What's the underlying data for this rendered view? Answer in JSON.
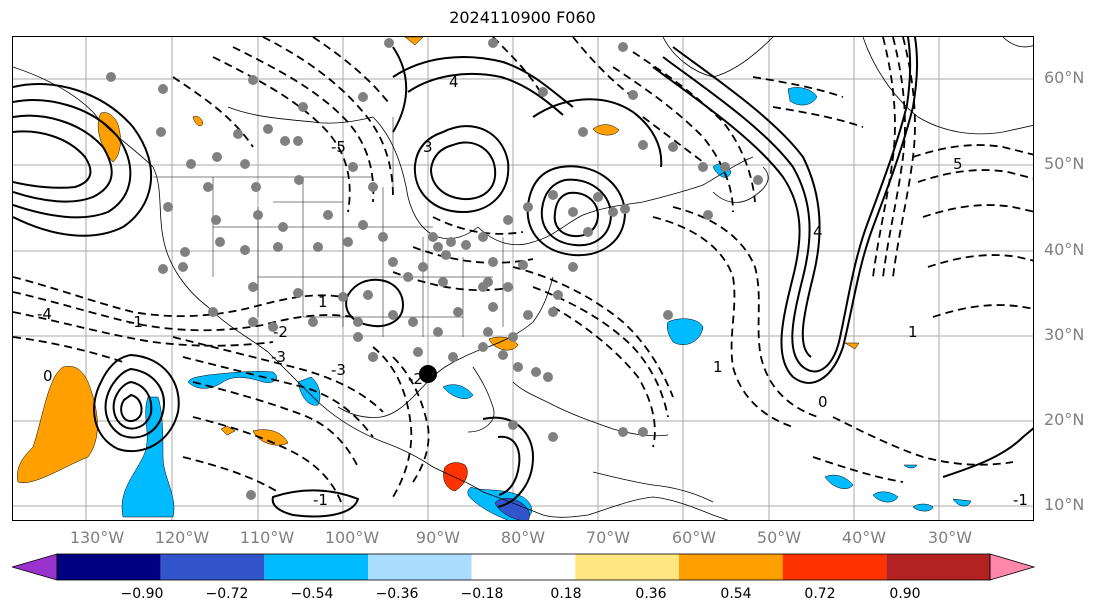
{
  "title": "2024110900 F060",
  "lat_labels": [
    "60°N",
    "50°N",
    "40°N",
    "30°N",
    "20°N",
    "10°N"
  ],
  "lon_labels": [
    "130°W",
    "120°W",
    "110°W",
    "100°W",
    "90°W",
    "80°W",
    "70°W",
    "60°W",
    "50°W",
    "40°W",
    "30°W"
  ],
  "contour_labels": [
    "-4",
    "-3",
    "-2",
    "-1",
    "0",
    "1",
    "-1",
    "-2",
    "-3",
    "4",
    "3",
    "-5",
    "1",
    "0",
    "-1",
    "1",
    "4",
    "5"
  ],
  "colorbar": {
    "ticks": [
      "−0.90",
      "−0.72",
      "−0.54",
      "−0.36",
      "−0.18",
      "0.18",
      "0.36",
      "0.54",
      "0.72",
      "0.90"
    ],
    "colors": [
      "#9933cc",
      "#000080",
      "#3355cc",
      "#00bbff",
      "#aaddff",
      "#ffffff",
      "#ffe680",
      "#ffa000",
      "#ff3300",
      "#b22222",
      "#ff88aa"
    ]
  },
  "shading_colors": {
    "positive": "#ffa000",
    "positive_strong": "#ff3300",
    "negative": "#00bbff",
    "negative_strong": "#3355cc"
  },
  "markers": {
    "station_color": "#808080",
    "storm_center_color": "#000000"
  }
}
